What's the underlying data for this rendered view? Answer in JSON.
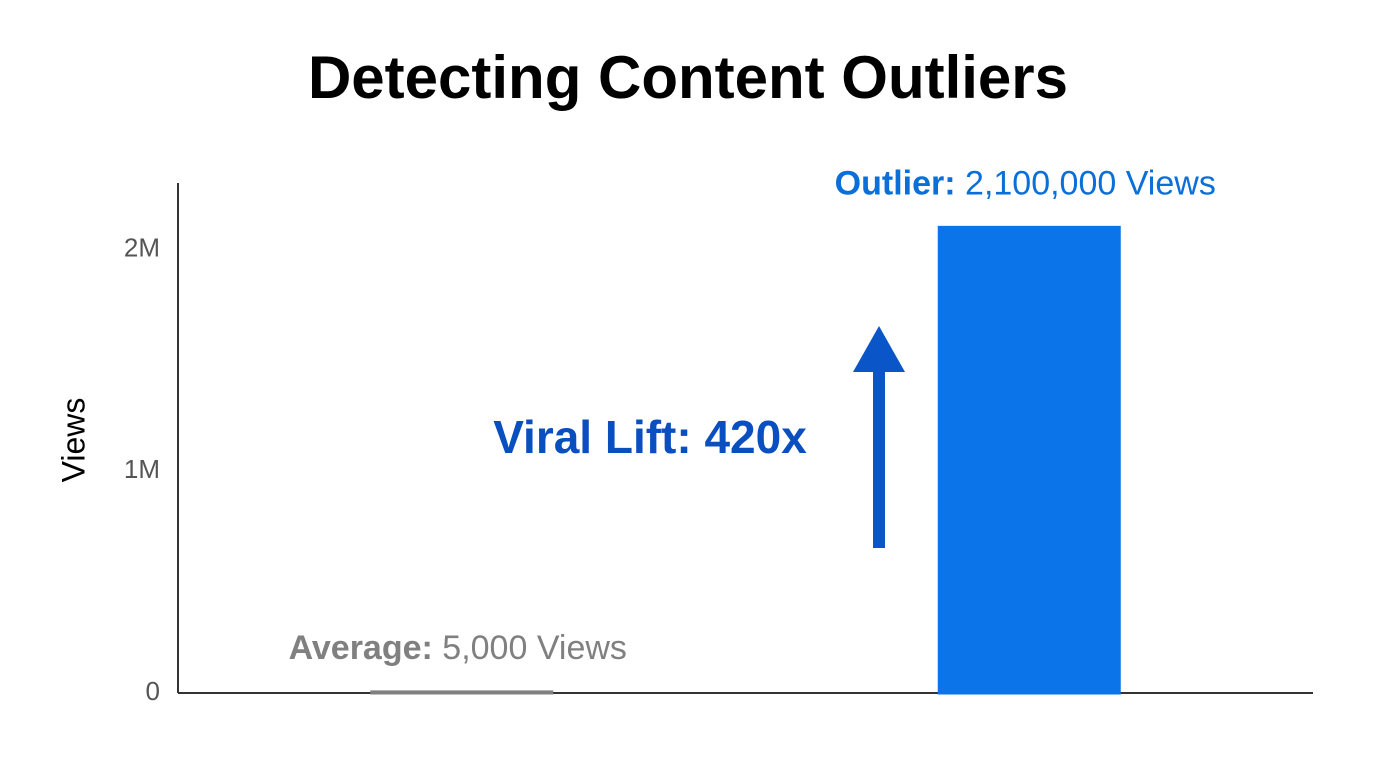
{
  "chart_data": {
    "type": "bar",
    "title": "Detecting Content Outliers",
    "y_label": "Views",
    "categories": [
      "Average:",
      "Outlier:"
    ],
    "values": [
      5000,
      2100000
    ],
    "value_labels": [
      "5,000 Views",
      "2,100,000 Views"
    ],
    "colors": [
      "#808080",
      "#0a74e8"
    ],
    "label_colors": [
      "#808080",
      "#0a6fd8"
    ],
    "annotation": "Viral Lift: 420x",
    "ylim": [
      0,
      2300000
    ],
    "yticks": [
      {
        "value": 0,
        "label": "0"
      },
      {
        "value": 1000000,
        "label": "1M"
      },
      {
        "value": 2000000,
        "label": "2M"
      }
    ],
    "grid": false
  }
}
